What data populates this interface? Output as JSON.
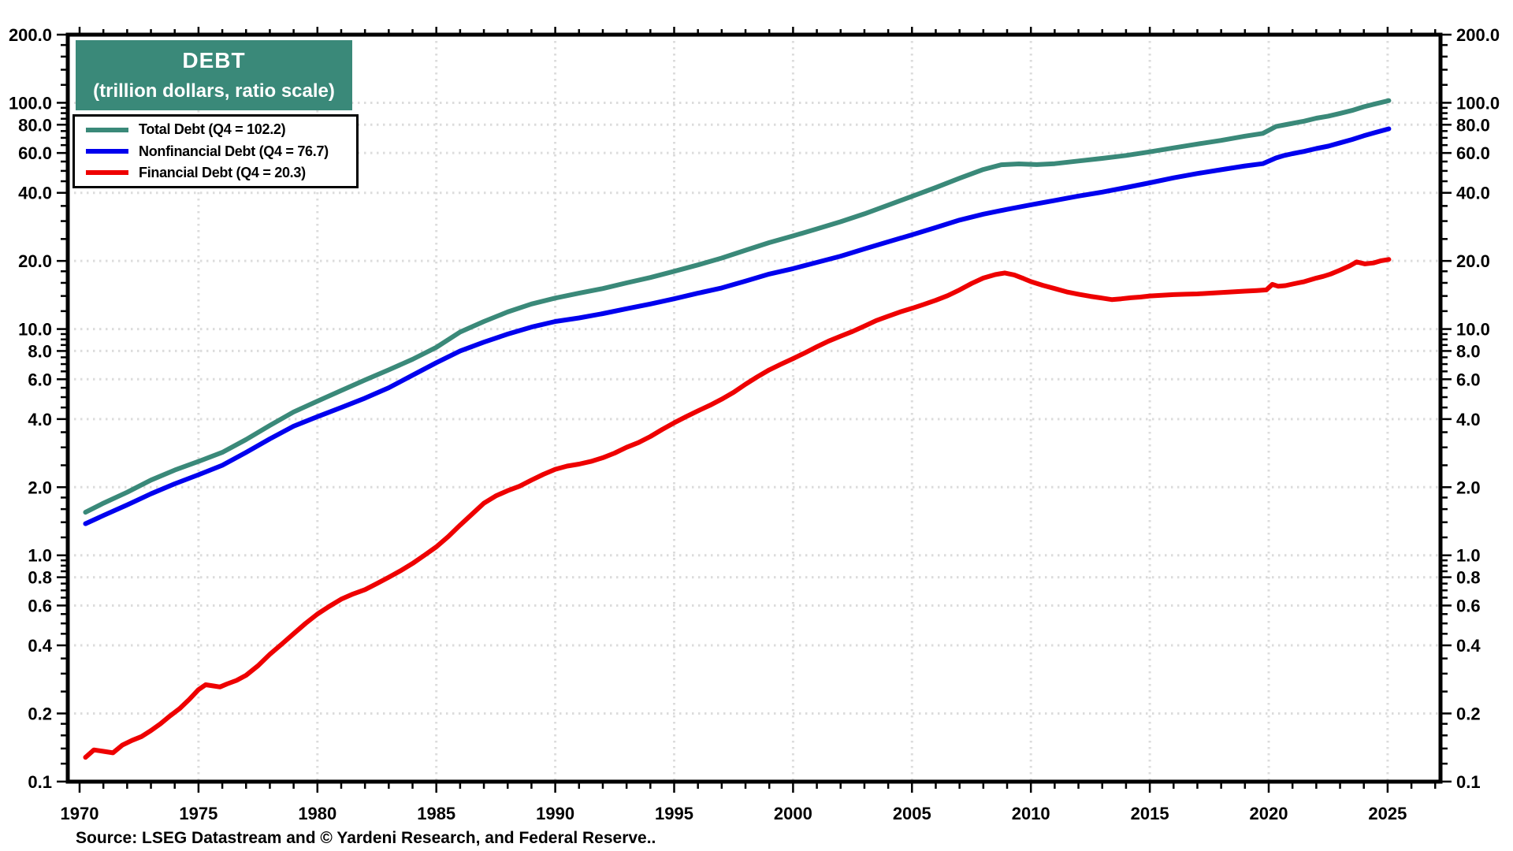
{
  "header": {
    "title": "DEBT",
    "subtitle": "(trillion dollars, ratio scale)"
  },
  "legend": {
    "items": [
      {
        "label": "Total Debt (Q4 = 102.2)",
        "color": "#3A8979"
      },
      {
        "label": "Nonfinancial Debt (Q4 = 76.7)",
        "color": "#0000EE"
      },
      {
        "label": "Financial Debt (Q4 = 20.3)",
        "color": "#EE0000"
      }
    ]
  },
  "source": "Source: LSEG Datastream and © Yardeni Research, and Federal Reserve..",
  "colors": {
    "title_box_bg": "#3A8979",
    "grid": "#DCDCDC",
    "frame": "#000000",
    "text": "#000000"
  },
  "chart_data": {
    "type": "line",
    "title": "DEBT (trillion dollars, ratio scale)",
    "y_scale": "log",
    "ylim": [
      0.1,
      200
    ],
    "xlim": [
      1969.5,
      2027.4
    ],
    "grid": "dotted, both axes",
    "legend_position": "top-left",
    "y_tick_values": [
      200,
      100,
      80,
      60,
      40,
      20,
      10,
      8,
      6,
      4,
      2,
      1,
      0.8,
      0.6,
      0.4,
      0.2,
      0.1
    ],
    "y_tick_labels": [
      "200.0",
      "100.0",
      "80.0",
      "60.0",
      "40.0",
      "20.0",
      "10.0",
      "8.0",
      "6.0",
      "4.0",
      "2.0",
      "1.0",
      "0.8",
      "0.6",
      "0.4",
      "0.2",
      "0.1"
    ],
    "y_grid_values": [
      100,
      80,
      60,
      40,
      20,
      10,
      8,
      6,
      4,
      2,
      1,
      0.8,
      0.6,
      0.4,
      0.2
    ],
    "x_tick_years": [
      1970,
      1975,
      1980,
      1985,
      1990,
      1995,
      2000,
      2005,
      2010,
      2015,
      2020,
      2025
    ],
    "x_tick_labels": [
      "1970",
      "1975",
      "1980",
      "1985",
      "1990",
      "1995",
      "2000",
      "2005",
      "2010",
      "2015",
      "2020",
      "2025"
    ],
    "x_grid_years": [
      1975,
      1980,
      1985,
      1990,
      1995,
      2000,
      2005,
      2010,
      2015,
      2020,
      2025
    ],
    "series": [
      {
        "name": "Total Debt",
        "legend": "Total Debt (Q4 = 102.2)",
        "color": "#3A8979",
        "last_value": 102.2,
        "points": [
          [
            1970.25,
            1.55
          ],
          [
            1971,
            1.7
          ],
          [
            1972,
            1.9
          ],
          [
            1973,
            2.15
          ],
          [
            1974,
            2.38
          ],
          [
            1975,
            2.6
          ],
          [
            1976,
            2.85
          ],
          [
            1977,
            3.25
          ],
          [
            1978,
            3.75
          ],
          [
            1979,
            4.3
          ],
          [
            1980,
            4.8
          ],
          [
            1981,
            5.35
          ],
          [
            1982,
            5.95
          ],
          [
            1983,
            6.6
          ],
          [
            1984,
            7.35
          ],
          [
            1985,
            8.3
          ],
          [
            1986,
            9.7
          ],
          [
            1987,
            10.8
          ],
          [
            1988,
            11.9
          ],
          [
            1989,
            12.9
          ],
          [
            1990,
            13.7
          ],
          [
            1991,
            14.4
          ],
          [
            1992,
            15.1
          ],
          [
            1993,
            16.0
          ],
          [
            1994,
            16.9
          ],
          [
            1995,
            18.0
          ],
          [
            1996,
            19.2
          ],
          [
            1997,
            20.6
          ],
          [
            1998,
            22.3
          ],
          [
            1999,
            24.1
          ],
          [
            2000,
            25.8
          ],
          [
            2001,
            27.7
          ],
          [
            2002,
            29.8
          ],
          [
            2003,
            32.3
          ],
          [
            2004,
            35.3
          ],
          [
            2005,
            38.6
          ],
          [
            2006,
            42.2
          ],
          [
            2007,
            46.4
          ],
          [
            2008,
            50.7
          ],
          [
            2008.75,
            53.2
          ],
          [
            2009.5,
            53.7
          ],
          [
            2010.25,
            53.3
          ],
          [
            2011,
            53.8
          ],
          [
            2012,
            55.3
          ],
          [
            2013,
            56.8
          ],
          [
            2014,
            58.5
          ],
          [
            2015,
            60.7
          ],
          [
            2016,
            63.2
          ],
          [
            2017,
            65.7
          ],
          [
            2018,
            68.2
          ],
          [
            2019,
            71.2
          ],
          [
            2019.75,
            73.2
          ],
          [
            2020.3,
            78.5
          ],
          [
            2020.75,
            80.2
          ],
          [
            2021.5,
            83.0
          ],
          [
            2022,
            85.5
          ],
          [
            2022.5,
            87.3
          ],
          [
            2023,
            89.8
          ],
          [
            2023.5,
            92.5
          ],
          [
            2024,
            96.0
          ],
          [
            2024.5,
            99.0
          ],
          [
            2025.05,
            102.2
          ]
        ]
      },
      {
        "name": "Nonfinancial Debt",
        "legend": "Nonfinancial Debt (Q4 = 76.7)",
        "color": "#0000EE",
        "last_value": 76.7,
        "points": [
          [
            1970.25,
            1.38
          ],
          [
            1971,
            1.5
          ],
          [
            1972,
            1.67
          ],
          [
            1973,
            1.87
          ],
          [
            1974,
            2.07
          ],
          [
            1975,
            2.27
          ],
          [
            1976,
            2.5
          ],
          [
            1977,
            2.85
          ],
          [
            1978,
            3.27
          ],
          [
            1979,
            3.72
          ],
          [
            1980,
            4.1
          ],
          [
            1981,
            4.5
          ],
          [
            1982,
            4.95
          ],
          [
            1983,
            5.5
          ],
          [
            1984,
            6.25
          ],
          [
            1985,
            7.1
          ],
          [
            1986,
            8.0
          ],
          [
            1987,
            8.75
          ],
          [
            1988,
            9.5
          ],
          [
            1989,
            10.2
          ],
          [
            1990,
            10.8
          ],
          [
            1991,
            11.2
          ],
          [
            1992,
            11.7
          ],
          [
            1993,
            12.3
          ],
          [
            1994,
            12.9
          ],
          [
            1995,
            13.6
          ],
          [
            1996,
            14.4
          ],
          [
            1997,
            15.2
          ],
          [
            1998,
            16.3
          ],
          [
            1999,
            17.5
          ],
          [
            2000,
            18.5
          ],
          [
            2001,
            19.7
          ],
          [
            2002,
            21.0
          ],
          [
            2003,
            22.6
          ],
          [
            2004,
            24.3
          ],
          [
            2005,
            26.1
          ],
          [
            2006,
            28.1
          ],
          [
            2007,
            30.3
          ],
          [
            2008,
            32.2
          ],
          [
            2009,
            33.8
          ],
          [
            2010,
            35.4
          ],
          [
            2011,
            37.0
          ],
          [
            2012,
            38.7
          ],
          [
            2013,
            40.3
          ],
          [
            2014,
            42.2
          ],
          [
            2015,
            44.3
          ],
          [
            2016,
            46.6
          ],
          [
            2017,
            48.7
          ],
          [
            2018,
            50.6
          ],
          [
            2019,
            52.6
          ],
          [
            2019.75,
            53.8
          ],
          [
            2020.3,
            57.0
          ],
          [
            2020.6,
            58.3
          ],
          [
            2021,
            59.6
          ],
          [
            2021.5,
            61.0
          ],
          [
            2022,
            62.8
          ],
          [
            2022.5,
            64.3
          ],
          [
            2023,
            66.5
          ],
          [
            2023.5,
            68.8
          ],
          [
            2024,
            71.5
          ],
          [
            2024.5,
            74.0
          ],
          [
            2025.05,
            76.7
          ]
        ]
      },
      {
        "name": "Financial Debt",
        "legend": "Financial Debt (Q4 = 20.3)",
        "color": "#EE0000",
        "last_value": 20.3,
        "points": [
          [
            1970.25,
            0.128
          ],
          [
            1970.6,
            0.138
          ],
          [
            1971,
            0.136
          ],
          [
            1971.4,
            0.134
          ],
          [
            1971.8,
            0.145
          ],
          [
            1972.2,
            0.152
          ],
          [
            1972.6,
            0.158
          ],
          [
            1973,
            0.168
          ],
          [
            1973.4,
            0.18
          ],
          [
            1973.8,
            0.195
          ],
          [
            1974.2,
            0.21
          ],
          [
            1974.6,
            0.23
          ],
          [
            1975,
            0.255
          ],
          [
            1975.3,
            0.268
          ],
          [
            1975.6,
            0.265
          ],
          [
            1975.9,
            0.262
          ],
          [
            1976.2,
            0.27
          ],
          [
            1976.6,
            0.28
          ],
          [
            1977,
            0.295
          ],
          [
            1977.5,
            0.325
          ],
          [
            1978,
            0.365
          ],
          [
            1978.5,
            0.405
          ],
          [
            1979,
            0.45
          ],
          [
            1979.5,
            0.5
          ],
          [
            1980,
            0.55
          ],
          [
            1980.5,
            0.595
          ],
          [
            1981,
            0.64
          ],
          [
            1981.5,
            0.675
          ],
          [
            1982,
            0.705
          ],
          [
            1982.5,
            0.75
          ],
          [
            1983,
            0.8
          ],
          [
            1983.5,
            0.855
          ],
          [
            1984,
            0.92
          ],
          [
            1984.5,
            1.0
          ],
          [
            1985,
            1.09
          ],
          [
            1985.5,
            1.21
          ],
          [
            1986,
            1.36
          ],
          [
            1986.5,
            1.52
          ],
          [
            1987,
            1.7
          ],
          [
            1987.5,
            1.83
          ],
          [
            1988,
            1.93
          ],
          [
            1988.5,
            2.02
          ],
          [
            1989,
            2.15
          ],
          [
            1989.5,
            2.28
          ],
          [
            1990,
            2.4
          ],
          [
            1990.5,
            2.48
          ],
          [
            1991,
            2.53
          ],
          [
            1991.5,
            2.6
          ],
          [
            1992,
            2.7
          ],
          [
            1992.5,
            2.83
          ],
          [
            1993,
            3.0
          ],
          [
            1993.5,
            3.15
          ],
          [
            1994,
            3.35
          ],
          [
            1994.5,
            3.6
          ],
          [
            1995,
            3.85
          ],
          [
            1995.5,
            4.1
          ],
          [
            1996,
            4.35
          ],
          [
            1996.5,
            4.6
          ],
          [
            1997,
            4.9
          ],
          [
            1997.5,
            5.25
          ],
          [
            1998,
            5.7
          ],
          [
            1998.5,
            6.15
          ],
          [
            1999,
            6.6
          ],
          [
            1999.5,
            7.0
          ],
          [
            2000,
            7.4
          ],
          [
            2000.5,
            7.85
          ],
          [
            2001,
            8.35
          ],
          [
            2001.5,
            8.85
          ],
          [
            2002,
            9.3
          ],
          [
            2002.5,
            9.75
          ],
          [
            2003,
            10.3
          ],
          [
            2003.5,
            10.9
          ],
          [
            2004,
            11.4
          ],
          [
            2004.5,
            11.9
          ],
          [
            2005,
            12.35
          ],
          [
            2005.5,
            12.85
          ],
          [
            2006,
            13.4
          ],
          [
            2006.5,
            14.05
          ],
          [
            2007,
            14.9
          ],
          [
            2007.5,
            15.9
          ],
          [
            2008,
            16.8
          ],
          [
            2008.5,
            17.4
          ],
          [
            2008.9,
            17.7
          ],
          [
            2009.3,
            17.35
          ],
          [
            2009.7,
            16.7
          ],
          [
            2010,
            16.2
          ],
          [
            2010.5,
            15.6
          ],
          [
            2011,
            15.1
          ],
          [
            2011.5,
            14.6
          ],
          [
            2012,
            14.25
          ],
          [
            2012.5,
            13.95
          ],
          [
            2013,
            13.7
          ],
          [
            2013.4,
            13.5
          ],
          [
            2013.8,
            13.6
          ],
          [
            2014.2,
            13.75
          ],
          [
            2014.6,
            13.85
          ],
          [
            2015,
            14.0
          ],
          [
            2015.5,
            14.1
          ],
          [
            2016,
            14.2
          ],
          [
            2016.5,
            14.25
          ],
          [
            2017,
            14.3
          ],
          [
            2017.5,
            14.4
          ],
          [
            2018,
            14.5
          ],
          [
            2018.5,
            14.6
          ],
          [
            2019,
            14.7
          ],
          [
            2019.5,
            14.8
          ],
          [
            2019.9,
            14.9
          ],
          [
            2020.15,
            15.75
          ],
          [
            2020.4,
            15.45
          ],
          [
            2020.7,
            15.55
          ],
          [
            2021,
            15.8
          ],
          [
            2021.5,
            16.2
          ],
          [
            2022,
            16.8
          ],
          [
            2022.3,
            17.1
          ],
          [
            2022.6,
            17.5
          ],
          [
            2023,
            18.2
          ],
          [
            2023.4,
            19.0
          ],
          [
            2023.7,
            19.8
          ],
          [
            2024.05,
            19.4
          ],
          [
            2024.4,
            19.6
          ],
          [
            2024.7,
            20.0
          ],
          [
            2025.05,
            20.3
          ]
        ]
      }
    ]
  }
}
